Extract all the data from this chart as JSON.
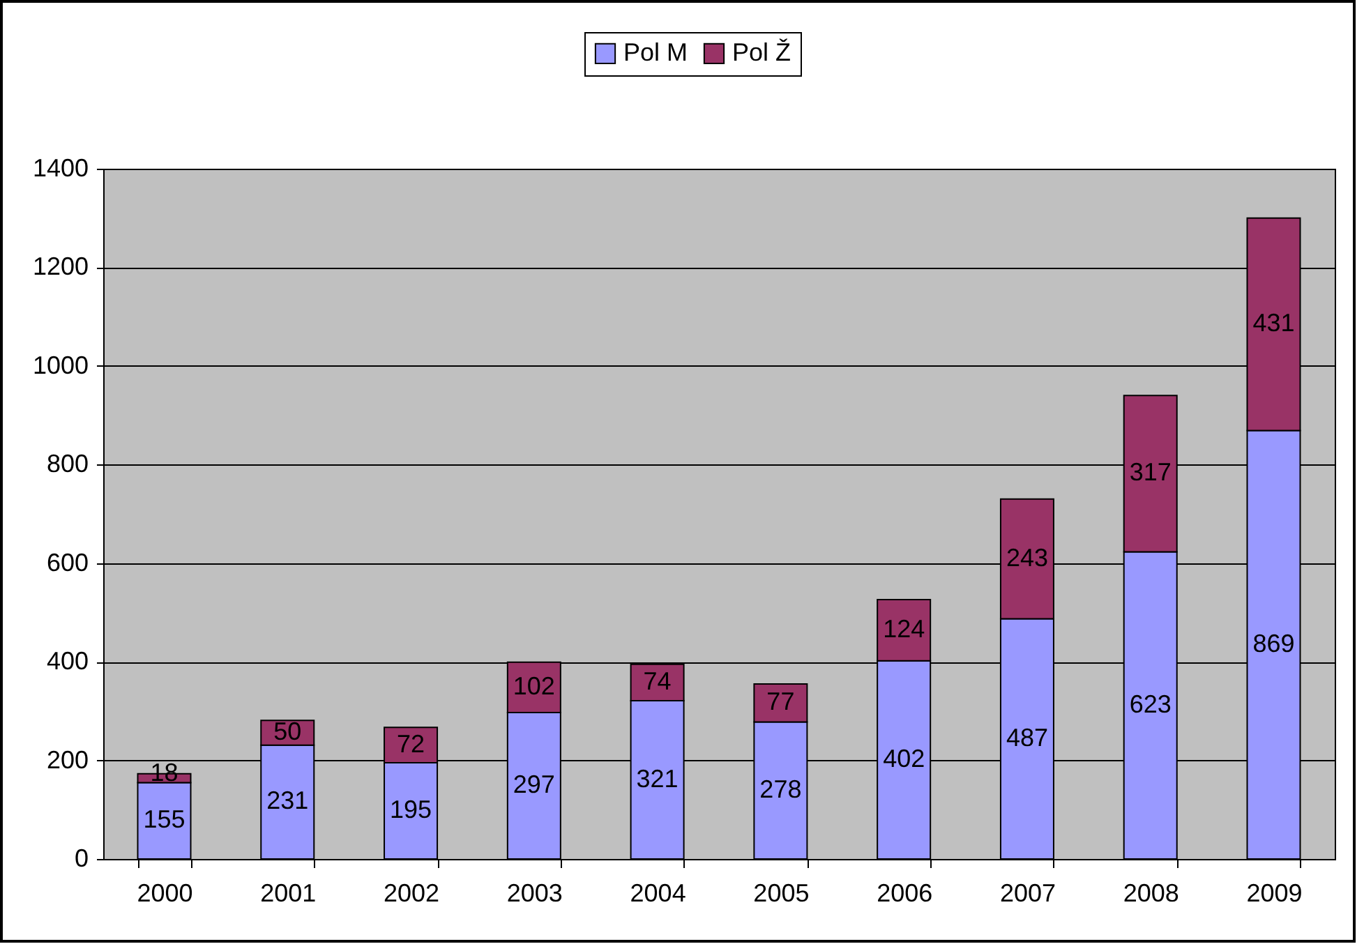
{
  "chart_data": {
    "type": "bar",
    "stacked": true,
    "categories": [
      "2000",
      "2001",
      "2002",
      "2003",
      "2004",
      "2005",
      "2006",
      "2007",
      "2008",
      "2009"
    ],
    "series": [
      {
        "name": "Pol M",
        "color": "#9999ff",
        "values": [
          155,
          231,
          195,
          297,
          321,
          278,
          402,
          487,
          623,
          869
        ]
      },
      {
        "name": "Pol Ž",
        "color": "#993366",
        "values": [
          18,
          50,
          72,
          102,
          74,
          77,
          124,
          243,
          317,
          431
        ]
      }
    ],
    "ylim": [
      0,
      1400
    ],
    "yticks": [
      0,
      200,
      400,
      600,
      800,
      1000,
      1200,
      1400
    ],
    "grid": "y",
    "legend": "top",
    "data_labels": true
  }
}
